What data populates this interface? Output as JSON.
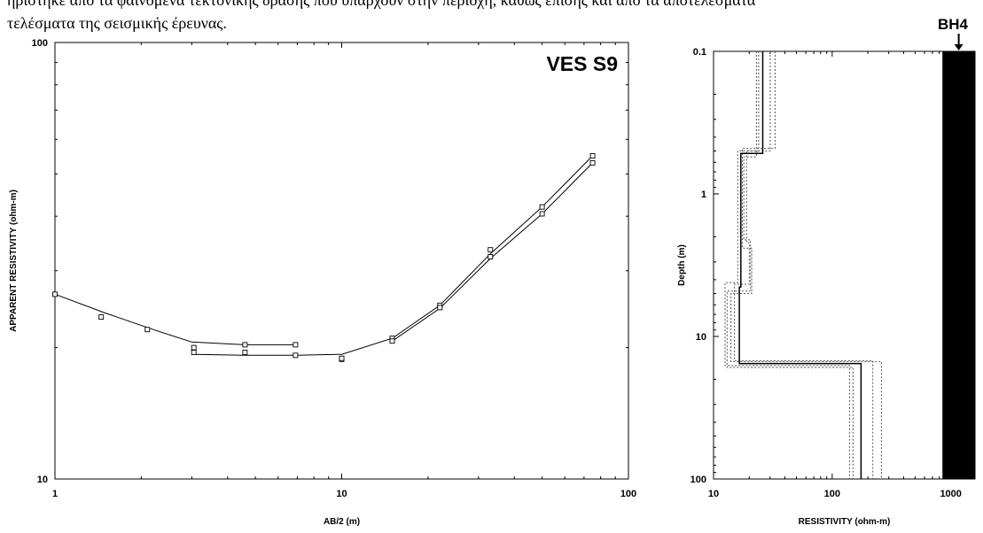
{
  "caption": {
    "line1": "ηρίστηκε από τα φαινόμενα τεκτονικής δράσης που υπάρχουν στην περιοχή, καθώς επίσης και από τα αποτελέσματα",
    "line2": "τελέσματα της σεισμικής έρευνας."
  },
  "borehole_label": "BH4",
  "chart_data": [
    {
      "type": "scatter",
      "title": "VES S9",
      "xlabel": "AB/2 (m)",
      "ylabel": "APPARENT RESISTIVITY (ohm-m)",
      "x_scale": "log",
      "y_scale": "log",
      "xlim": [
        1,
        100
      ],
      "ylim": [
        10,
        100
      ],
      "x_ticks": [
        "1",
        "10",
        "100"
      ],
      "y_ticks": [
        "10",
        "100"
      ],
      "grid": false,
      "series": [
        {
          "role": "measured",
          "marker": "square",
          "points": [
            [
              1,
              26.5
            ],
            [
              1.45,
              23.5
            ],
            [
              2.1,
              22
            ],
            [
              3.05,
              20
            ],
            [
              4.6,
              20.3
            ],
            [
              6.9,
              20.3
            ],
            [
              3.05,
              19.5
            ],
            [
              4.6,
              19.5
            ],
            [
              6.9,
              19.2
            ],
            [
              10,
              18.8
            ],
            [
              15,
              21
            ],
            [
              22,
              25
            ],
            [
              33,
              33.5
            ],
            [
              50,
              42
            ],
            [
              75,
              55
            ],
            [
              10,
              18.9
            ],
            [
              15,
              20.7
            ],
            [
              22,
              24.7
            ],
            [
              33,
              32.3
            ],
            [
              50,
              40.5
            ],
            [
              75,
              53
            ]
          ]
        },
        {
          "role": "model-curve",
          "points": [
            [
              1,
              26.5
            ],
            [
              1.5,
              24
            ],
            [
              2.2,
              22
            ],
            [
              3,
              20.6
            ],
            [
              4.6,
              20.3
            ],
            [
              6.9,
              20.3
            ]
          ]
        },
        {
          "role": "model-curve",
          "points": [
            [
              3.05,
              19.3
            ],
            [
              4.6,
              19.2
            ],
            [
              6.9,
              19.2
            ],
            [
              10,
              19.3
            ],
            [
              15,
              21
            ],
            [
              22,
              25
            ],
            [
              33,
              32.8
            ],
            [
              50,
              42
            ],
            [
              75,
              55
            ]
          ]
        },
        {
          "role": "model-curve",
          "points": [
            [
              15,
              20.7
            ],
            [
              22,
              24.6
            ],
            [
              33,
              32
            ],
            [
              50,
              40.5
            ],
            [
              75,
              53
            ]
          ]
        }
      ]
    },
    {
      "type": "line",
      "title": "",
      "xlabel": "RESISTIVITY (ohm-m)",
      "ylabel": "Depth (m)",
      "x_scale": "log",
      "y_scale": "log",
      "y_inverted": true,
      "xlim": [
        10,
        1600
      ],
      "ylim": [
        0.1,
        100
      ],
      "x_ticks": [
        "10",
        "100",
        "1000"
      ],
      "y_ticks": [
        "0.1",
        "1",
        "10",
        "100"
      ],
      "grid": false,
      "series": [
        {
          "role": "best-fit-model",
          "layers": [
            {
              "resistivity": 26,
              "top": 0.1,
              "bottom": 0.52
            },
            {
              "resistivity": 17,
              "top": 0.52,
              "bottom": 4.5
            },
            {
              "resistivity": 16.5,
              "top": 4.5,
              "bottom": 15.5
            },
            {
              "resistivity": 175,
              "top": 15.5,
              "bottom": 100
            }
          ]
        },
        {
          "role": "equivalent-model",
          "layers": [
            {
              "resistivity": 30,
              "top": 0.1,
              "bottom": 0.5
            },
            {
              "resistivity": 19,
              "top": 0.5,
              "bottom": 2.2
            },
            {
              "resistivity": 20,
              "top": 2.2,
              "bottom": 4.3
            },
            {
              "resistivity": 15,
              "top": 4.3,
              "bottom": 14.8
            },
            {
              "resistivity": 220,
              "top": 14.8,
              "bottom": 100
            }
          ]
        },
        {
          "role": "equivalent-model",
          "layers": [
            {
              "resistivity": 23,
              "top": 0.1,
              "bottom": 0.55
            },
            {
              "resistivity": 18,
              "top": 0.55,
              "bottom": 2.1
            },
            {
              "resistivity": 20.5,
              "top": 2.1,
              "bottom": 4.8
            },
            {
              "resistivity": 13,
              "top": 4.8,
              "bottom": 16.5
            },
            {
              "resistivity": 150,
              "top": 16.5,
              "bottom": 100
            }
          ]
        },
        {
          "role": "equivalent-model",
          "layers": [
            {
              "resistivity": 33,
              "top": 0.1,
              "bottom": 0.48
            },
            {
              "resistivity": 17.5,
              "top": 0.48,
              "bottom": 2.4
            },
            {
              "resistivity": 21,
              "top": 2.4,
              "bottom": 5
            },
            {
              "resistivity": 14,
              "top": 5,
              "bottom": 15
            },
            {
              "resistivity": 260,
              "top": 15,
              "bottom": 100
            }
          ]
        },
        {
          "role": "equivalent-model",
          "layers": [
            {
              "resistivity": 24,
              "top": 0.1,
              "bottom": 0.5
            },
            {
              "resistivity": 16,
              "top": 0.5,
              "bottom": 4.2
            },
            {
              "resistivity": 12.5,
              "top": 4.2,
              "bottom": 16
            },
            {
              "resistivity": 140,
              "top": 16,
              "bottom": 100
            }
          ]
        }
      ],
      "borehole_column": {
        "x_from": 850,
        "x_to": 1600,
        "color": "#000000"
      }
    }
  ]
}
